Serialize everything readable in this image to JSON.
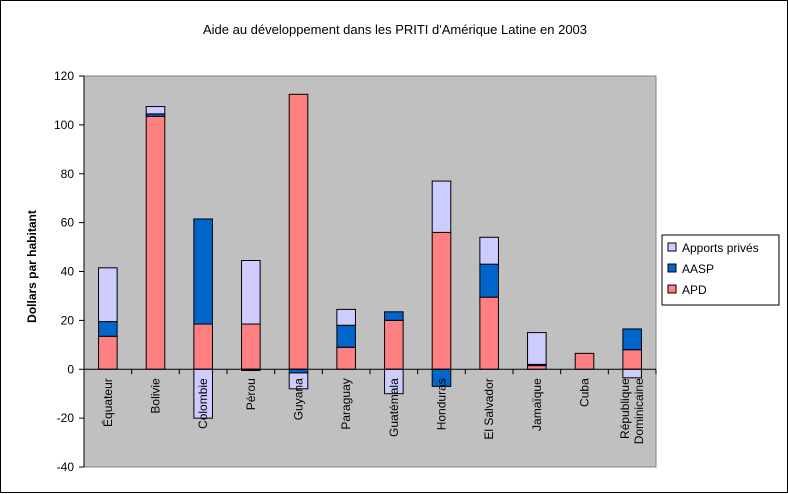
{
  "chart_data": {
    "type": "bar",
    "stacked": true,
    "title": "Aide au développement dans les PRITI d'Amérique Latine en 2003",
    "xlabel": "",
    "ylabel": "Dollars par habitant",
    "ylim": [
      -40,
      120
    ],
    "yticks": [
      -40,
      -20,
      0,
      20,
      40,
      60,
      80,
      100,
      120
    ],
    "grid": false,
    "legend_position": "right",
    "plot_background": "#c0c0c0",
    "categories": [
      [
        "Équateur"
      ],
      [
        "Bolivie"
      ],
      [
        "Colombie"
      ],
      [
        "Pérou"
      ],
      [
        "Guyana"
      ],
      [
        "Paraguay"
      ],
      [
        "Guatémala"
      ],
      [
        "Honduras"
      ],
      [
        "El Salvador"
      ],
      [
        "Jamaïque"
      ],
      [
        "Cuba"
      ],
      [
        "République",
        "Dominicaine"
      ]
    ],
    "series": [
      {
        "name": "APD",
        "color": "#ff8080",
        "values": [
          13.5,
          103.5,
          18.5,
          18.5,
          112.5,
          9.0,
          20.0,
          56.0,
          29.5,
          1.5,
          6.5,
          8.0
        ]
      },
      {
        "name": "AASP",
        "color": "#0066cc",
        "values": [
          6.0,
          1.0,
          43.0,
          -0.5,
          -1.5,
          9.0,
          3.5,
          -7.0,
          13.5,
          0.5,
          0.0,
          8.5
        ]
      },
      {
        "name": "Apports privés",
        "color": "#ccccff",
        "values": [
          22.0,
          3.0,
          -20.0,
          26.0,
          -6.5,
          6.5,
          -10.0,
          21.0,
          11.0,
          13.0,
          0.0,
          -3.5
        ]
      }
    ],
    "legend": [
      "Apports privés",
      "AASP",
      "APD"
    ]
  }
}
